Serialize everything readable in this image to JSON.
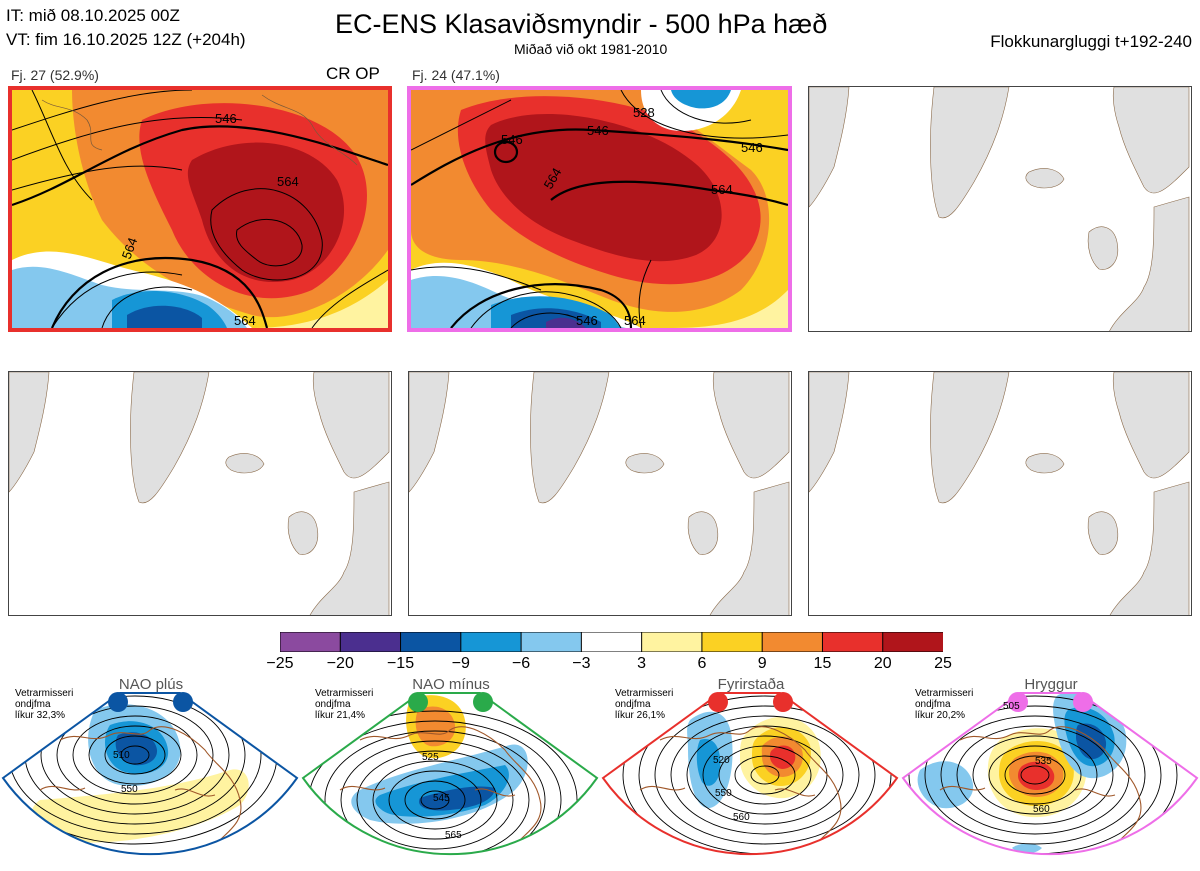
{
  "header": {
    "it_line": "IT: mið 08.10.2025 00Z",
    "vt_line": "VT: fim 16.10.2025 12Z  (+204h)",
    "title": "EC-ENS Klasaviðsmyndir - 500 hPa hæð",
    "subtitle": "Miðað við okt 1981-2010",
    "window": "Flokkunargluggi t+192-240"
  },
  "clusters": [
    {
      "label": "Fj. 27 (52.9%)",
      "tag": "CR OP",
      "border_color": "#e8302c",
      "contours": [
        "546",
        "546",
        "564",
        "564",
        "564",
        "564"
      ]
    },
    {
      "label": "Fj. 24 (47.1%)",
      "tag": "",
      "border_color": "#ee6ee8",
      "contours": [
        "528",
        "546",
        "546",
        "546",
        "564",
        "564",
        "546",
        "564"
      ]
    }
  ],
  "colorbar": {
    "ticks": [
      "−25",
      "−20",
      "−15",
      "−9",
      "−6",
      "−3",
      "3",
      "6",
      "9",
      "15",
      "20",
      "25"
    ],
    "colors": [
      "#8b4a9f",
      "#4b2f8f",
      "#0b55a3",
      "#1696d6",
      "#84c8ee",
      "#ffffff",
      "#fff3a0",
      "#fbd123",
      "#f28a30",
      "#e8302c",
      "#b0151b"
    ]
  },
  "regimes": [
    {
      "name": "NAO plús",
      "line1": "Vetrarmisseri",
      "line2": "ondjfma",
      "line3": "líkur 32,3%",
      "color": "#0b55a3",
      "contours": [
        "510",
        "550"
      ]
    },
    {
      "name": "NAO mínus",
      "line1": "Vetrarmisseri",
      "line2": "ondjfma",
      "line3": "líkur 21,4%",
      "color": "#2aaa4a",
      "contours": [
        "525",
        "545",
        "565"
      ]
    },
    {
      "name": "Fyrirstaða",
      "line1": "Vetrarmisseri",
      "line2": "ondjfma",
      "line3": "líkur 26,1%",
      "color": "#e8302c",
      "contours": [
        "520",
        "550",
        "560"
      ]
    },
    {
      "name": "Hryggur",
      "line1": "Vetrarmisseri",
      "line2": "ondjfma",
      "line3": "líkur 20,2%",
      "color": "#ee6ee8",
      "contours": [
        "505",
        "535",
        "560"
      ]
    }
  ],
  "chart_data": {
    "type": "heatmap",
    "title": "EC-ENS Klasaviðsmyndir - 500 hPa hæð",
    "subtitle": "Miðað við okt 1981-2010",
    "colorbar_levels": [
      -25,
      -20,
      -15,
      -9,
      -6,
      -3,
      3,
      6,
      9,
      15,
      20,
      25
    ],
    "clusters": [
      {
        "label": "Fj. 27 (52.9%)",
        "members": 27,
        "percent": 52.9
      },
      {
        "label": "Fj. 24 (47.1%)",
        "members": 24,
        "percent": 47.1
      }
    ],
    "regime_probabilities": [
      {
        "regime": "NAO plús",
        "percent": 32.3
      },
      {
        "regime": "NAO mínus",
        "percent": 21.4
      },
      {
        "regime": "Fyrirstaða",
        "percent": 26.1
      },
      {
        "regime": "Hryggur",
        "percent": 20.2
      }
    ]
  }
}
